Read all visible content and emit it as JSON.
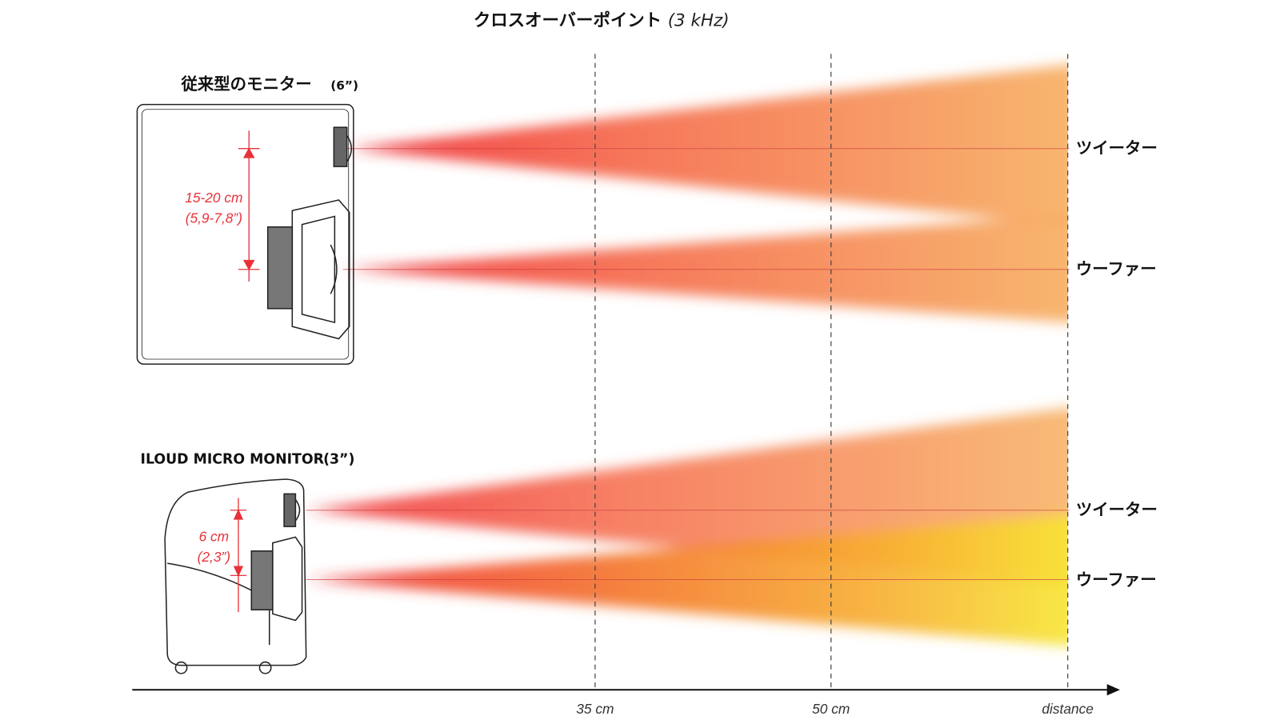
{
  "title": {
    "text": "クロスオーバーポイント",
    "note": "(3 kHz)"
  },
  "panels": [
    {
      "label": "従来型のモニター",
      "size": "(6”)",
      "spacing": "15-20 cm",
      "spacing_inch": "(5,9-7,8”)",
      "drivers": [
        "ツイーター",
        "ウーファー"
      ]
    },
    {
      "label": "ILOUD MICRO MONITOR",
      "size": "(3”)",
      "spacing": "6 cm",
      "spacing_inch": "(2,3”)",
      "drivers": [
        "ツイーター",
        "ウーファー"
      ]
    }
  ],
  "axis": {
    "ticks": [
      "35 cm",
      "50 cm",
      "distance"
    ]
  }
}
